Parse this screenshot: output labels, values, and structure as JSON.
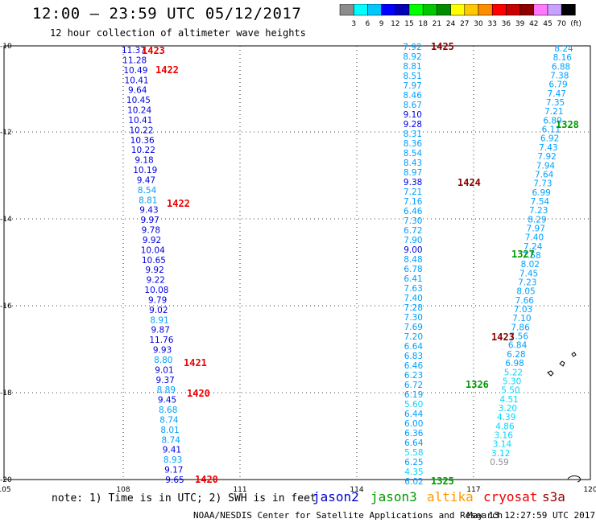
{
  "header": {
    "title": "12:00 – 23:59 UTC 05/12/2017",
    "subtitle": "12 hour collection of altimeter wave heights"
  },
  "colorbar": {
    "labels": [
      "3",
      "6",
      "9",
      "12",
      "15",
      "18",
      "21",
      "24",
      "27",
      "30",
      "33",
      "36",
      "39",
      "42",
      "45",
      "70"
    ],
    "unit": "(ft)",
    "colors": [
      "#8c8c8c",
      "#00ffff",
      "#00c8ff",
      "#0000ff",
      "#0000b4",
      "#00ff00",
      "#00c800",
      "#008c00",
      "#ffff00",
      "#ffc800",
      "#ff8c00",
      "#ff0000",
      "#c80000",
      "#8c0000",
      "#ff78ff",
      "#c8a0ff",
      "#000000"
    ]
  },
  "axes": {
    "lat_labels": [
      "-10",
      "-12",
      "-14",
      "-16",
      "-18",
      "-20"
    ],
    "lon_labels": [
      "105",
      "108",
      "111",
      "114",
      "117",
      "120"
    ]
  },
  "tracks": {
    "track1": {
      "values": [
        "11.37",
        "11.28",
        "10.49",
        "10.41",
        "9.64",
        "10.45",
        "10.24",
        "10.41",
        "10.22",
        "10.36",
        "10.22",
        "9.18",
        "10.19",
        "9.47",
        "8.54",
        "8.81",
        "9.43",
        "9.97",
        "9.78",
        "9.92",
        "10.04",
        "10.65",
        "9.92",
        "9.22",
        "10.08",
        "9.79",
        "9.02",
        "8.91",
        "9.87",
        "11.76",
        "9.93",
        "8.80",
        "9.01",
        "9.37",
        "8.89",
        "9.45",
        "8.68",
        "8.74",
        "8.01",
        "8.74",
        "9.41",
        "8.93",
        "9.17",
        "9.65"
      ],
      "times": [
        "1423",
        "1422",
        "1422",
        "1421",
        "1420",
        "1420"
      ]
    },
    "track2": {
      "values": [
        "7.92",
        "8.92",
        "8.81",
        "8.51",
        "7.97",
        "8.46",
        "8.67",
        "9.10",
        "9.28",
        "8.31",
        "8.36",
        "8.54",
        "8.43",
        "8.97",
        "9.38",
        "7.21",
        "7.16",
        "6.46",
        "7.30",
        "6.72",
        "7.90",
        "9.00",
        "8.48",
        "6.78",
        "6.41",
        "7.63",
        "7.40",
        "7.28",
        "7.30",
        "7.69",
        "7.20",
        "6.64",
        "6.83",
        "6.46",
        "6.23",
        "6.72",
        "6.19",
        "5.60",
        "6.44",
        "6.00",
        "6.36",
        "6.64",
        "5.58",
        "6.25",
        "4.35",
        "6.02"
      ],
      "times": [
        "1425",
        "1424",
        "1326",
        "1325"
      ]
    },
    "track3": {
      "values": [
        "8.24",
        "8.16",
        "6.88",
        "7.38",
        "6.79",
        "7.47",
        "7.35",
        "7.21",
        "6.89",
        "6.11",
        "6.92",
        "7.43",
        "7.92",
        "7.94",
        "7.64",
        "7.73",
        "6.99",
        "7.54",
        "7.23",
        "8.29",
        "7.97",
        "7.40",
        "7.24",
        "7.58",
        "8.02",
        "7.45",
        "7.23",
        "8.05",
        "7.66",
        "7.03",
        "7.10",
        "7.86",
        "7.56",
        "6.84",
        "6.28",
        "6.98",
        "5.22",
        "5.30",
        "5.50",
        "4.51",
        "3.20",
        "4.39",
        "4.86",
        "3.16",
        "3.14",
        "3.12",
        "0.59"
      ],
      "times": [
        "1328",
        "1327",
        "1423"
      ]
    }
  },
  "footer": {
    "note": "note: 1) Time is in UTC; 2) SWH is in feet",
    "satellites": [
      {
        "label": "jason2",
        "color": "#0000cc"
      },
      {
        "label": "jason3",
        "color": "#009900"
      },
      {
        "label": "altika",
        "color": "#ff9900"
      },
      {
        "label": "cryosat",
        "color": "#ee0000"
      },
      {
        "label": "s3a",
        "color": "#990000"
      }
    ],
    "credit": "NOAA/NESDIS Center for Satellite Applications and Research",
    "timestamp": "May 13 12:27:59 UTC 2017"
  }
}
